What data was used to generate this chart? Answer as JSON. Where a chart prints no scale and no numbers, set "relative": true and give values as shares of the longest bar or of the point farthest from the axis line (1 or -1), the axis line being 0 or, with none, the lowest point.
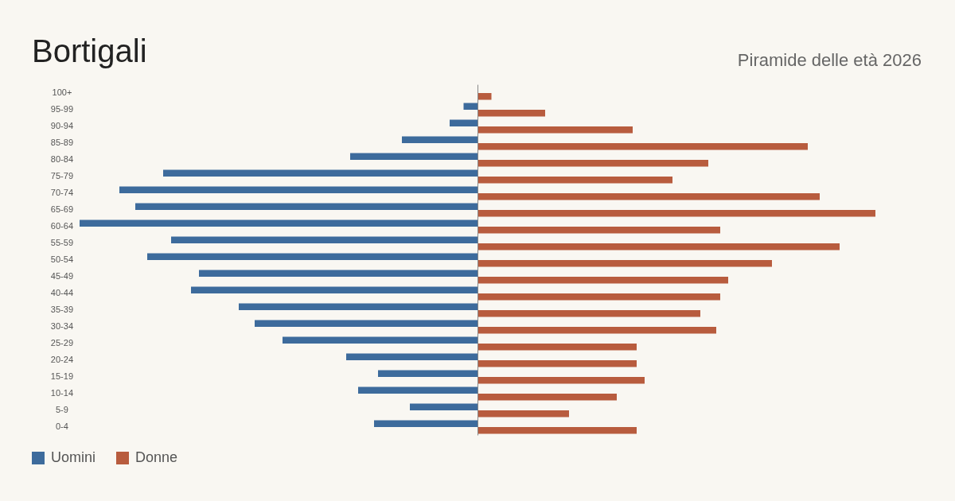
{
  "chart_data": {
    "type": "bar",
    "title": "Bortigali",
    "subtitle": "Piramide delle età 2026",
    "orientation": "horizontal",
    "relative": true,
    "legend": "bottom left",
    "categories": [
      "100+",
      "95-99",
      "90-94",
      "85-89",
      "80-84",
      "75-79",
      "70-74",
      "65-69",
      "60-64",
      "55-59",
      "50-54",
      "45-49",
      "40-44",
      "35-39",
      "30-34",
      "25-29",
      "20-24",
      "15-19",
      "10-14",
      "5-9",
      "0-4"
    ],
    "series": [
      {
        "name": "Uomini",
        "color": "#3d6b9c",
        "values": [
          0,
          -0.035,
          -0.07,
          -0.19,
          -0.32,
          -0.79,
          -0.9,
          -0.86,
          -1,
          -0.77,
          -0.83,
          -0.7,
          -0.72,
          -0.6,
          -0.56,
          -0.49,
          -0.33,
          -0.25,
          -0.3,
          -0.17,
          -0.26
        ]
      },
      {
        "name": "Donne",
        "color": "#b85c3e",
        "values": [
          0.035,
          0.17,
          0.39,
          0.83,
          0.58,
          0.49,
          0.86,
          1,
          0.61,
          0.91,
          0.74,
          0.63,
          0.61,
          0.56,
          0.6,
          0.4,
          0.4,
          0.42,
          0.35,
          0.23,
          0.4
        ]
      }
    ]
  }
}
